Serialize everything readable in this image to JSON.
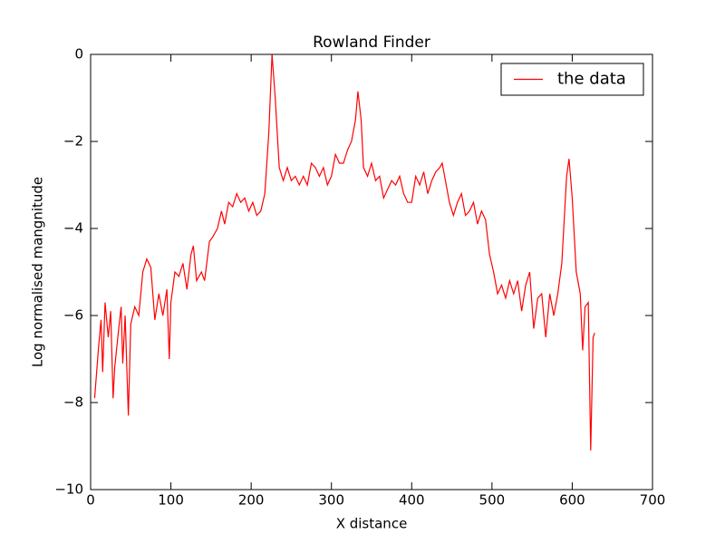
{
  "chart_data": {
    "type": "line",
    "title": "Rowland Finder",
    "x_label": "X distance",
    "y_label": "Log normalised mangnitude",
    "x": [
      5,
      10,
      13,
      15,
      18,
      22,
      25,
      28,
      30,
      35,
      38,
      40,
      43,
      47,
      50,
      55,
      60,
      65,
      70,
      75,
      80,
      85,
      90,
      95,
      98,
      100,
      105,
      110,
      115,
      120,
      125,
      128,
      132,
      138,
      142,
      148,
      152,
      158,
      163,
      167,
      172,
      177,
      182,
      187,
      192,
      197,
      202,
      207,
      212,
      217,
      222,
      226,
      230,
      235,
      240,
      245,
      250,
      255,
      260,
      265,
      270,
      275,
      280,
      285,
      290,
      295,
      300,
      305,
      310,
      315,
      320,
      325,
      330,
      333,
      337,
      340,
      345,
      350,
      355,
      360,
      365,
      370,
      375,
      380,
      385,
      390,
      395,
      400,
      405,
      410,
      415,
      420,
      425,
      430,
      435,
      438,
      442,
      447,
      452,
      457,
      462,
      467,
      472,
      477,
      482,
      487,
      492,
      497,
      502,
      507,
      512,
      517,
      522,
      527,
      532,
      537,
      542,
      547,
      552,
      557,
      562,
      567,
      572,
      577,
      582,
      587,
      590,
      593,
      596,
      600,
      605,
      610,
      613,
      616,
      620,
      623,
      626,
      628
    ],
    "series": [
      {
        "name": "the data",
        "color": "#ff0000",
        "values": [
          -7.9,
          -6.7,
          -6.1,
          -7.3,
          -5.7,
          -6.5,
          -5.9,
          -7.9,
          -7.2,
          -6.3,
          -5.8,
          -7.1,
          -6.0,
          -8.3,
          -6.2,
          -5.8,
          -6.0,
          -5.0,
          -4.7,
          -4.9,
          -6.1,
          -5.5,
          -6.0,
          -5.4,
          -7.0,
          -5.7,
          -5.0,
          -5.1,
          -4.8,
          -5.4,
          -4.6,
          -4.4,
          -5.2,
          -5.0,
          -5.2,
          -4.3,
          -4.2,
          -4.0,
          -3.6,
          -3.9,
          -3.4,
          -3.5,
          -3.2,
          -3.4,
          -3.3,
          -3.6,
          -3.4,
          -3.7,
          -3.6,
          -3.2,
          -1.8,
          0.0,
          -1.0,
          -2.6,
          -2.9,
          -2.6,
          -2.9,
          -2.8,
          -3.0,
          -2.8,
          -3.0,
          -2.5,
          -2.6,
          -2.8,
          -2.6,
          -3.0,
          -2.8,
          -2.3,
          -2.5,
          -2.5,
          -2.2,
          -2.0,
          -1.5,
          -0.85,
          -1.5,
          -2.6,
          -2.8,
          -2.5,
          -2.9,
          -2.8,
          -3.3,
          -3.1,
          -2.9,
          -3.0,
          -2.8,
          -3.2,
          -3.4,
          -3.4,
          -2.8,
          -3.0,
          -2.7,
          -3.2,
          -2.9,
          -2.7,
          -2.6,
          -2.5,
          -2.9,
          -3.4,
          -3.7,
          -3.4,
          -3.2,
          -3.7,
          -3.6,
          -3.4,
          -3.9,
          -3.6,
          -3.8,
          -4.6,
          -5.0,
          -5.5,
          -5.3,
          -5.6,
          -5.2,
          -5.5,
          -5.2,
          -5.9,
          -5.3,
          -5.0,
          -6.3,
          -5.6,
          -5.5,
          -6.5,
          -5.5,
          -6.0,
          -5.5,
          -4.8,
          -3.8,
          -2.8,
          -2.4,
          -3.3,
          -5.0,
          -5.5,
          -6.8,
          -5.8,
          -5.7,
          -9.1,
          -6.5,
          -6.4
        ]
      }
    ],
    "xlim": [
      0,
      700
    ],
    "xticks": [
      0,
      100,
      200,
      300,
      400,
      500,
      600,
      700
    ],
    "ylim": [
      -10,
      0
    ],
    "yticks": [
      {
        "value": -10,
        "label": "−10"
      },
      {
        "value": -8,
        "label": "−8"
      },
      {
        "value": -6,
        "label": "−6"
      },
      {
        "value": -4,
        "label": "−4"
      },
      {
        "value": -2,
        "label": "−2"
      },
      0
    ],
    "legend": "upper right"
  }
}
